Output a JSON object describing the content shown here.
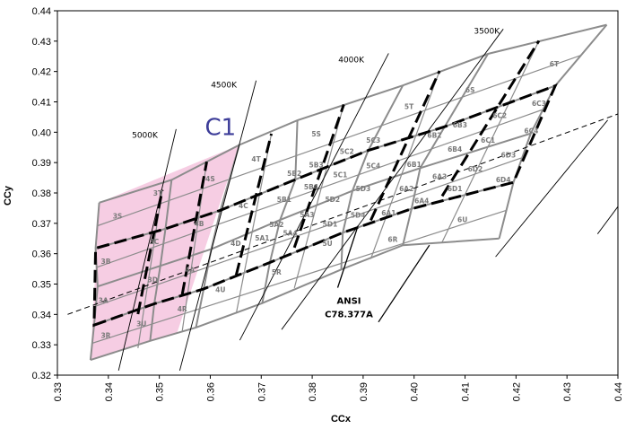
{
  "chart_data": {
    "type": "scatter",
    "title": "",
    "xlabel": "CCx",
    "ylabel": "CCy",
    "xlim": [
      0.33,
      0.44
    ],
    "ylim": [
      0.32,
      0.44
    ],
    "xticks": [
      "0.33",
      "0.34",
      "0.35",
      "0.36",
      "0.37",
      "0.38",
      "0.39",
      "0.40",
      "0.41",
      "0.42",
      "0.43",
      "0.44"
    ],
    "yticks": [
      "0.32",
      "0.33",
      "0.34",
      "0.35",
      "0.36",
      "0.37",
      "0.38",
      "0.39",
      "0.40",
      "0.41",
      "0.42",
      "0.43",
      "0.44"
    ],
    "grid": false,
    "colors": {
      "highlight_fill": "#f6cde3",
      "bin_line": "#8c8c8c",
      "ansi_line": "#000000",
      "isotherm": "#000000"
    },
    "highlight_region": {
      "label": "C1",
      "polygon": [
        [
          0.3365,
          0.325
        ],
        [
          0.3535,
          0.334
        ],
        [
          0.3657,
          0.3958
        ],
        [
          0.3382,
          0.3768
        ]
      ]
    },
    "bin_grid": [
      [
        [
          0.3365,
          0.325
        ],
        [
          0.3482,
          0.3313
        ],
        [
          0.3572,
          0.3357
        ],
        [
          0.3702,
          0.3437
        ],
        [
          0.3857,
          0.3548
        ],
        [
          0.3978,
          0.3628
        ],
        [
          0.4167,
          0.365
        ]
      ],
      [
        [
          0.3372,
          0.3365
        ],
        [
          0.349,
          0.3435
        ],
        [
          0.3587,
          0.3484
        ],
        [
          0.3717,
          0.3571
        ],
        [
          0.386,
          0.3669
        ],
        [
          0.3995,
          0.3748
        ],
        [
          0.4195,
          0.3835
        ]
      ],
      [
        [
          0.3379,
          0.3492
        ],
        [
          0.3502,
          0.356
        ],
        [
          0.3602,
          0.3615
        ],
        [
          0.3737,
          0.3711
        ],
        [
          0.3879,
          0.3807
        ],
        [
          0.4012,
          0.3882
        ],
        [
          0.4229,
          0.3996
        ]
      ],
      [
        [
          0.3375,
          0.3618
        ],
        [
          0.3512,
          0.3682
        ],
        [
          0.362,
          0.3743
        ],
        [
          0.3767,
          0.3844
        ],
        [
          0.391,
          0.394
        ],
        [
          0.406,
          0.4018
        ],
        [
          0.4277,
          0.4153
        ]
      ],
      [
        [
          0.3382,
          0.3768
        ],
        [
          0.3524,
          0.3843
        ],
        [
          0.3657,
          0.3958
        ],
        [
          0.3771,
          0.4039
        ],
        [
          0.3978,
          0.4154
        ],
        [
          0.4145,
          0.4258
        ],
        [
          0.4378,
          0.4354
        ]
      ]
    ],
    "grid_midlines": {
      "cols": [
        [
          [
            0.3458,
            0.3289
          ],
          [
            0.3506,
            0.381
          ]
        ],
        [
          [
            0.3545,
            0.3345
          ],
          [
            0.3593,
            0.3903
          ]
        ],
        [
          [
            0.3651,
            0.3403
          ],
          [
            0.372,
            0.3995
          ]
        ],
        [
          [
            0.3765,
            0.3487
          ],
          [
            0.3862,
            0.4091
          ]
        ],
        [
          [
            0.3915,
            0.3583
          ],
          [
            0.405,
            0.4202
          ]
        ],
        [
          [
            0.4055,
            0.3638
          ],
          [
            0.4245,
            0.4301
          ]
        ]
      ],
      "rows": [
        [
          [
            0.3368,
            0.3305
          ],
          [
            0.418,
            0.3742
          ]
        ],
        [
          [
            0.3376,
            0.3428
          ],
          [
            0.421,
            0.3915
          ]
        ],
        [
          [
            0.3377,
            0.3555
          ],
          [
            0.4253,
            0.4075
          ]
        ],
        [
          [
            0.3379,
            0.3692
          ],
          [
            0.4327,
            0.4253
          ]
        ]
      ]
    },
    "ansi_quadrangles": [
      [
        [
          0.3372,
          0.3365
        ],
        [
          0.349,
          0.3435
        ],
        [
          0.3587,
          0.3484
        ],
        [
          0.3717,
          0.3571
        ],
        [
          0.386,
          0.3669
        ],
        [
          0.3995,
          0.3748
        ],
        [
          0.4195,
          0.3835
        ],
        [
          0.4277,
          0.4153
        ],
        [
          0.406,
          0.4018
        ],
        [
          0.391,
          0.394
        ],
        [
          0.3767,
          0.3844
        ],
        [
          0.362,
          0.3743
        ],
        [
          0.3512,
          0.3682
        ],
        [
          0.3375,
          0.3618
        ]
      ]
    ],
    "ansi_verticals": [
      [
        [
          0.3458,
          0.3401
        ],
        [
          0.3506,
          0.381
        ]
      ],
      [
        [
          0.3545,
          0.3466
        ],
        [
          0.3593,
          0.3903
        ]
      ],
      [
        [
          0.3651,
          0.353
        ],
        [
          0.372,
          0.3995
        ]
      ],
      [
        [
          0.3765,
          0.362
        ],
        [
          0.3862,
          0.4091
        ]
      ],
      [
        [
          0.3915,
          0.371
        ],
        [
          0.405,
          0.4202
        ]
      ],
      [
        [
          0.4055,
          0.379
        ],
        [
          0.4245,
          0.4301
        ]
      ]
    ],
    "planckian_locus": [
      [
        0.332,
        0.34
      ],
      [
        0.44,
        0.406
      ]
    ],
    "isotherms": [
      {
        "label": "5000K",
        "points": [
          [
            0.342,
            0.3215
          ],
          [
            0.3533,
            0.401
          ]
        ],
        "label_at": [
          0.3497,
          0.3982
        ]
      },
      {
        "label": "4500K",
        "points": [
          [
            0.354,
            0.3215
          ],
          [
            0.369,
            0.417
          ]
        ],
        "label_at": [
          0.3652,
          0.4147
        ]
      },
      {
        "label": "4000K",
        "points": [
          [
            0.3658,
            0.3315
          ],
          [
            0.395,
            0.426
          ]
        ],
        "label_at": [
          0.3902,
          0.423
        ]
      },
      {
        "label": "3500K",
        "points": [
          [
            0.374,
            0.335
          ],
          [
            0.4175,
            0.434
          ]
        ],
        "label_at": [
          0.4168,
          0.4324
        ]
      },
      {
        "label": "",
        "points": [
          [
            0.416,
            0.359
          ],
          [
            0.438,
            0.404
          ]
        ],
        "label_at": null
      },
      {
        "label": "",
        "points": [
          [
            0.436,
            0.3665
          ],
          [
            0.44,
            0.3755
          ]
        ],
        "label_at": null
      }
    ],
    "bin_labels": [
      {
        "t": "3R",
        "xy": [
          0.3395,
          0.3332
        ]
      },
      {
        "t": "3A",
        "xy": [
          0.339,
          0.3447
        ]
      },
      {
        "t": "3B",
        "xy": [
          0.3395,
          0.3575
        ]
      },
      {
        "t": "3S",
        "xy": [
          0.3418,
          0.3725
        ]
      },
      {
        "t": "3U",
        "xy": [
          0.3465,
          0.337
        ]
      },
      {
        "t": "3D",
        "xy": [
          0.3487,
          0.3515
        ]
      },
      {
        "t": "3C",
        "xy": [
          0.349,
          0.364
        ]
      },
      {
        "t": "3T",
        "xy": [
          0.3497,
          0.38
        ]
      },
      {
        "t": "4R",
        "xy": [
          0.3545,
          0.3418
        ]
      },
      {
        "t": "4A",
        "xy": [
          0.356,
          0.3548
        ]
      },
      {
        "t": "4B",
        "xy": [
          0.3578,
          0.37
        ]
      },
      {
        "t": "4S",
        "xy": [
          0.36,
          0.3848
        ]
      },
      {
        "t": "4U",
        "xy": [
          0.362,
          0.3483
        ]
      },
      {
        "t": "4D",
        "xy": [
          0.365,
          0.3635
        ]
      },
      {
        "t": "4C",
        "xy": [
          0.3665,
          0.3758
        ]
      },
      {
        "t": "4T",
        "xy": [
          0.369,
          0.3913
        ]
      },
      {
        "t": "5R",
        "xy": [
          0.373,
          0.354
        ]
      },
      {
        "t": "5A1",
        "xy": [
          0.3702,
          0.3652
        ]
      },
      {
        "t": "5A2",
        "xy": [
          0.373,
          0.3697
        ]
      },
      {
        "t": "5A4",
        "xy": [
          0.3757,
          0.3668
        ]
      },
      {
        "t": "5B1",
        "xy": [
          0.3745,
          0.378
        ]
      },
      {
        "t": "5B2",
        "xy": [
          0.3765,
          0.3865
        ]
      },
      {
        "t": "5A3",
        "xy": [
          0.379,
          0.3729
        ]
      },
      {
        "t": "5B4",
        "xy": [
          0.3798,
          0.382
        ]
      },
      {
        "t": "5B3",
        "xy": [
          0.3808,
          0.3893
        ]
      },
      {
        "t": "5S",
        "xy": [
          0.3808,
          0.3995
        ]
      },
      {
        "t": "5U",
        "xy": [
          0.383,
          0.3635
        ]
      },
      {
        "t": "5D1",
        "xy": [
          0.3835,
          0.3698
        ]
      },
      {
        "t": "5D2",
        "xy": [
          0.384,
          0.378
        ]
      },
      {
        "t": "5C1",
        "xy": [
          0.3855,
          0.386
        ]
      },
      {
        "t": "5C2",
        "xy": [
          0.3868,
          0.3937
        ]
      },
      {
        "t": "5D4",
        "xy": [
          0.389,
          0.3728
        ]
      },
      {
        "t": "5D3",
        "xy": [
          0.39,
          0.3815
        ]
      },
      {
        "t": "5C4",
        "xy": [
          0.392,
          0.389
        ]
      },
      {
        "t": "5C3",
        "xy": [
          0.392,
          0.3975
        ]
      },
      {
        "t": "5T",
        "xy": [
          0.399,
          0.4085
        ]
      },
      {
        "t": "6R",
        "xy": [
          0.3958,
          0.3648
        ]
      },
      {
        "t": "6A1",
        "xy": [
          0.395,
          0.3735
        ]
      },
      {
        "t": "6A2",
        "xy": [
          0.3985,
          0.3815
        ]
      },
      {
        "t": "6A3",
        "xy": [
          0.405,
          0.3855
        ]
      },
      {
        "t": "6A4",
        "xy": [
          0.4015,
          0.3775
        ]
      },
      {
        "t": "6B1",
        "xy": [
          0.4,
          0.3895
        ]
      },
      {
        "t": "6B2",
        "xy": [
          0.404,
          0.399
        ]
      },
      {
        "t": "6B3",
        "xy": [
          0.409,
          0.4025
        ]
      },
      {
        "t": "6B4",
        "xy": [
          0.408,
          0.3945
        ]
      },
      {
        "t": "6C1",
        "xy": [
          0.4145,
          0.3975
        ]
      },
      {
        "t": "6C2",
        "xy": [
          0.4168,
          0.4055
        ]
      },
      {
        "t": "6C3",
        "xy": [
          0.4245,
          0.4095
        ]
      },
      {
        "t": "6C4",
        "xy": [
          0.423,
          0.4005
        ]
      },
      {
        "t": "6D1",
        "xy": [
          0.408,
          0.3815
        ]
      },
      {
        "t": "6D2",
        "xy": [
          0.412,
          0.388
        ]
      },
      {
        "t": "6D3",
        "xy": [
          0.4185,
          0.3925
        ]
      },
      {
        "t": "6D4",
        "xy": [
          0.4175,
          0.3845
        ]
      },
      {
        "t": "6S",
        "xy": [
          0.411,
          0.414
        ]
      },
      {
        "t": "6T",
        "xy": [
          0.4275,
          0.4225
        ]
      },
      {
        "t": "6U",
        "xy": [
          0.4095,
          0.3713
        ]
      }
    ],
    "annotations": [
      {
        "text": "ANSI",
        "xy": [
          0.3872,
          0.3435
        ]
      },
      {
        "text": "C78.377A",
        "xy": [
          0.3872,
          0.339
        ]
      },
      {
        "text": "C1",
        "xy": [
          0.362,
          0.399
        ]
      }
    ],
    "annotation_pointers": [
      [
        [
          0.385,
          0.3488
        ],
        [
          0.389,
          0.3692
        ]
      ],
      [
        [
          0.393,
          0.3375
        ],
        [
          0.403,
          0.3628
        ]
      ]
    ]
  }
}
